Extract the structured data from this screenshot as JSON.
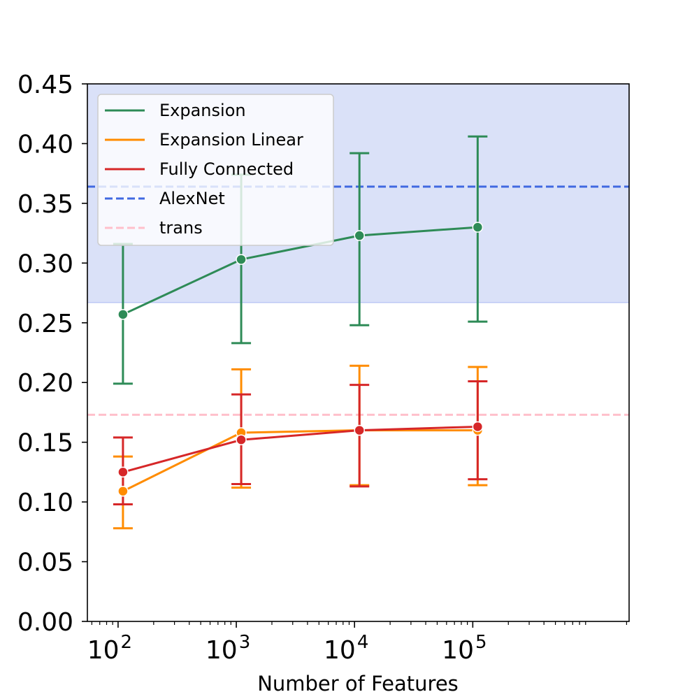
{
  "chart_data": {
    "type": "line",
    "xscale": "log",
    "xlim": [
      55,
      2100000
    ],
    "ylim": [
      0,
      0.45
    ],
    "xlabel": "Number of Features",
    "ylabel": "",
    "x_ticks": [
      {
        "value": 100,
        "base": "10",
        "exp": "2"
      },
      {
        "value": 1000,
        "base": "10",
        "exp": "3"
      },
      {
        "value": 10000,
        "base": "10",
        "exp": "4"
      },
      {
        "value": 100000,
        "base": "10",
        "exp": "5"
      }
    ],
    "y_ticks": [
      "0.00",
      "0.05",
      "0.10",
      "0.15",
      "0.20",
      "0.25",
      "0.30",
      "0.35",
      "0.40",
      "0.45"
    ],
    "x": [
      110,
      1100,
      11000,
      110000
    ],
    "series": [
      {
        "name": "Expansion",
        "color": "#2e8b57",
        "values": [
          0.257,
          0.303,
          0.323,
          0.33
        ],
        "err_low": [
          0.199,
          0.233,
          0.248,
          0.251
        ],
        "err_high": [
          0.316,
          0.374,
          0.392,
          0.406
        ]
      },
      {
        "name": "Expansion Linear",
        "color": "#ff8c00",
        "values": [
          0.109,
          0.158,
          0.16,
          0.16
        ],
        "err_low": [
          0.078,
          0.112,
          0.114,
          0.114
        ],
        "err_high": [
          0.138,
          0.211,
          0.214,
          0.213
        ]
      },
      {
        "name": "Fully Connected",
        "color": "#d62728",
        "values": [
          0.125,
          0.152,
          0.16,
          0.163
        ],
        "err_low": [
          0.098,
          0.115,
          0.113,
          0.119
        ],
        "err_high": [
          0.154,
          0.19,
          0.198,
          0.201
        ]
      }
    ],
    "reference_lines": [
      {
        "name": "AlexNet",
        "value": 0.364,
        "color": "#4169e1",
        "band": [
          0.267,
          0.45
        ]
      },
      {
        "name": "trans",
        "value": 0.173,
        "color": "#ffc0cb"
      }
    ],
    "band_color": "#dae1f8",
    "legend_position": "upper-left",
    "grid": false
  }
}
